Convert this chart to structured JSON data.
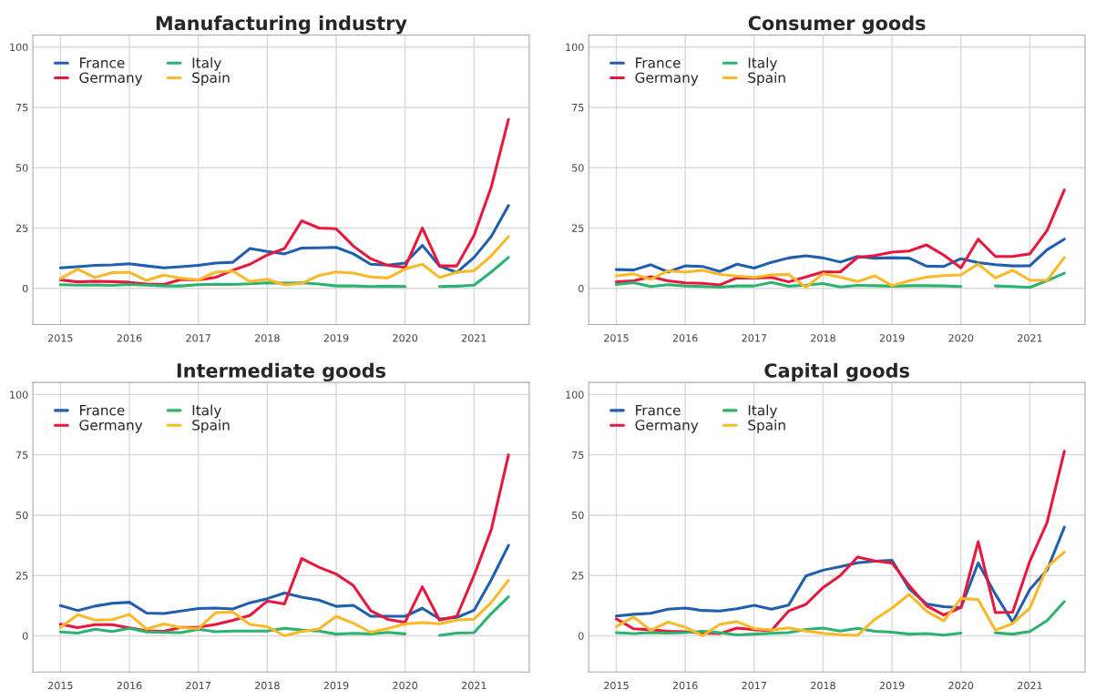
{
  "chart_data": [
    {
      "type": "line",
      "title": "Manufacturing industry",
      "x": [
        2015,
        2015.25,
        2015.5,
        2015.75,
        2016,
        2016.25,
        2016.5,
        2016.75,
        2017,
        2017.25,
        2017.5,
        2017.75,
        2018,
        2018.25,
        2018.5,
        2018.75,
        2019,
        2019.25,
        2019.5,
        2019.75,
        2020,
        2020.25,
        2020.5,
        2020.75,
        2021,
        2021.25,
        2021.5
      ],
      "xlim": [
        2014.6,
        2021.8
      ],
      "xticks": [
        2015,
        2016,
        2017,
        2018,
        2019,
        2020,
        2021
      ],
      "ylim": [
        -15,
        105
      ],
      "yticks": [
        0,
        25,
        50,
        75,
        100
      ],
      "grid": true,
      "legend": "top left",
      "series": [
        {
          "name": "France",
          "color": "#1f5fad",
          "values": [
            8.5,
            9,
            9.5,
            9.7,
            10.2,
            9.3,
            8.5,
            9,
            9.5,
            10.5,
            10.8,
            16.5,
            15.3,
            14.3,
            16.7,
            16.8,
            17,
            14.3,
            10,
            9.6,
            10.5,
            17.8,
            9.2,
            6.6,
            12.8,
            21.5,
            34.3
          ]
        },
        {
          "name": "Germany",
          "color": "#e8173d",
          "values": [
            3.5,
            2.7,
            2.9,
            2.8,
            2.5,
            1.8,
            1.6,
            3.7,
            3.5,
            4.5,
            7.5,
            10,
            13.8,
            16.5,
            28,
            25,
            24.7,
            17.5,
            12.3,
            9.5,
            8.7,
            25,
            9.3,
            9.3,
            22,
            42,
            70
          ]
        },
        {
          "name": "Italy",
          "color": "#2db36f",
          "values": [
            1.5,
            1.3,
            1.4,
            1.2,
            1.6,
            1.3,
            1,
            1,
            1.5,
            1.7,
            1.6,
            1.9,
            2.3,
            2.2,
            2.3,
            1.8,
            1,
            1,
            0.8,
            0.9,
            0.8,
            null,
            0.8,
            0.9,
            1.3,
            6.8,
            12.8
          ]
        },
        {
          "name": "Spain",
          "color": "#fbb829",
          "values": [
            4,
            8,
            4.5,
            6.5,
            6.7,
            3.3,
            5.5,
            4.2,
            3.5,
            6.7,
            7.2,
            2.8,
            3.8,
            1.4,
            2,
            5.3,
            6.8,
            6.3,
            4.7,
            4.3,
            8,
            10,
            4.5,
            6.7,
            7.3,
            13.5,
            21.5
          ]
        }
      ]
    },
    {
      "type": "line",
      "title": "Consumer goods",
      "x": [
        2015,
        2015.25,
        2015.5,
        2015.75,
        2016,
        2016.25,
        2016.5,
        2016.75,
        2017,
        2017.25,
        2017.5,
        2017.75,
        2018,
        2018.25,
        2018.5,
        2018.75,
        2019,
        2019.25,
        2019.5,
        2019.75,
        2020,
        2020.25,
        2020.5,
        2020.75,
        2021,
        2021.25,
        2021.5
      ],
      "xlim": [
        2014.6,
        2021.8
      ],
      "xticks": [
        2015,
        2016,
        2017,
        2018,
        2019,
        2020,
        2021
      ],
      "ylim": [
        -15,
        105
      ],
      "yticks": [
        0,
        25,
        50,
        75,
        100
      ],
      "grid": true,
      "legend": "top left",
      "series": [
        {
          "name": "France",
          "color": "#1f5fad",
          "values": [
            7.8,
            7.6,
            9.8,
            6.8,
            9.3,
            9.1,
            7,
            10,
            8.4,
            10.8,
            12.6,
            13.5,
            12.6,
            10.9,
            13.2,
            12.5,
            12.7,
            12.5,
            9.2,
            9.1,
            12.3,
            10.7,
            9.8,
            9.3,
            9.4,
            16,
            20.4
          ]
        },
        {
          "name": "Germany",
          "color": "#e8173d",
          "values": [
            2.7,
            3.1,
            4.8,
            3.1,
            2.3,
            2.1,
            1.4,
            4.4,
            4.3,
            4.5,
            2.7,
            4.7,
            6.8,
            6.8,
            12.8,
            13.6,
            15,
            15.5,
            18,
            13.8,
            8.5,
            20.4,
            13.2,
            13.2,
            14.3,
            24,
            40.8
          ]
        },
        {
          "name": "Italy",
          "color": "#2db36f",
          "values": [
            1.6,
            2.4,
            0.8,
            1.5,
            1,
            0.8,
            0.5,
            1,
            1,
            2.5,
            0.9,
            1.3,
            2,
            0.6,
            1.2,
            1.1,
            0.9,
            1.1,
            1.1,
            1,
            0.8,
            null,
            1,
            0.8,
            0.4,
            3.2,
            6.3
          ]
        },
        {
          "name": "Spain",
          "color": "#fbb829",
          "values": [
            5.2,
            6,
            3.7,
            7.3,
            6.7,
            7.5,
            5.8,
            5.1,
            4.5,
            5.6,
            5.8,
            0.5,
            6,
            4.6,
            2.8,
            5.2,
            1.1,
            3.1,
            4.6,
            5.3,
            5.6,
            10.1,
            4.3,
            7.5,
            3.4,
            3.3,
            12.8
          ]
        }
      ]
    },
    {
      "type": "line",
      "title": "Intermediate goods",
      "x": [
        2015,
        2015.25,
        2015.5,
        2015.75,
        2016,
        2016.25,
        2016.5,
        2016.75,
        2017,
        2017.25,
        2017.5,
        2017.75,
        2018,
        2018.25,
        2018.5,
        2018.75,
        2019,
        2019.25,
        2019.5,
        2019.75,
        2020,
        2020.25,
        2020.5,
        2020.75,
        2021,
        2021.25,
        2021.5
      ],
      "xlim": [
        2014.6,
        2021.8
      ],
      "xticks": [
        2015,
        2016,
        2017,
        2018,
        2019,
        2020,
        2021
      ],
      "ylim": [
        -15,
        105
      ],
      "yticks": [
        0,
        25,
        50,
        75,
        100
      ],
      "grid": true,
      "legend": "top left",
      "series": [
        {
          "name": "France",
          "color": "#1f5fad",
          "values": [
            12.5,
            10.5,
            12.3,
            13.5,
            13.9,
            9.4,
            9.2,
            10.3,
            11.3,
            11.5,
            11.1,
            13.7,
            15.4,
            17.7,
            16,
            14.8,
            12.2,
            12.6,
            8.1,
            8.1,
            8.1,
            11.4,
            7,
            7.6,
            10.6,
            23.2,
            37.5
          ]
        },
        {
          "name": "Germany",
          "color": "#e8173d",
          "values": [
            4.8,
            3.4,
            4.6,
            4.6,
            3.3,
            2.1,
            1.9,
            3.5,
            3.6,
            4.7,
            6.4,
            8.5,
            14.4,
            13.2,
            32,
            28.4,
            25.6,
            20.8,
            10.4,
            6.8,
            5.6,
            20.3,
            6.5,
            8.1,
            25,
            44,
            75
          ]
        },
        {
          "name": "Italy",
          "color": "#2db36f",
          "values": [
            1.6,
            1.1,
            2.7,
            1.8,
            3.1,
            1.6,
            1.4,
            1.3,
            2.7,
            1.7,
            2,
            2,
            2,
            3.1,
            2.4,
            2,
            0.7,
            1,
            0.8,
            1.4,
            0.8,
            null,
            0.2,
            1.1,
            1.3,
            9.2,
            16.2
          ]
        },
        {
          "name": "Spain",
          "color": "#fbb829",
          "values": [
            3.5,
            8.8,
            6.5,
            6.7,
            8.9,
            2.8,
            4.9,
            3.4,
            3,
            9.6,
            9.8,
            4.7,
            3.8,
            0,
            1.8,
            2.8,
            8,
            5.2,
            1.5,
            3,
            4.9,
            5.5,
            5,
            6.5,
            6.9,
            13.8,
            23
          ]
        }
      ]
    },
    {
      "type": "line",
      "title": "Capital goods",
      "x": [
        2015,
        2015.25,
        2015.5,
        2015.75,
        2016,
        2016.25,
        2016.5,
        2016.75,
        2017,
        2017.25,
        2017.5,
        2017.75,
        2018,
        2018.25,
        2018.5,
        2018.75,
        2019,
        2019.25,
        2019.5,
        2019.75,
        2020,
        2020.25,
        2020.5,
        2020.75,
        2021,
        2021.25,
        2021.5
      ],
      "xlim": [
        2014.6,
        2021.8
      ],
      "xticks": [
        2015,
        2016,
        2017,
        2018,
        2019,
        2020,
        2021
      ],
      "ylim": [
        -15,
        105
      ],
      "yticks": [
        0,
        25,
        50,
        75,
        100
      ],
      "grid": true,
      "legend": "top left",
      "series": [
        {
          "name": "France",
          "color": "#1f5fad",
          "values": [
            8.2,
            8.9,
            9.3,
            11,
            11.5,
            10.5,
            10.3,
            11.2,
            12.6,
            11,
            12.7,
            24.8,
            27.2,
            28.7,
            30.3,
            30.9,
            31.3,
            19.5,
            13.2,
            12.1,
            11.7,
            30.2,
            17.2,
            5.7,
            19.2,
            27.3,
            45
          ]
        },
        {
          "name": "Germany",
          "color": "#e8173d",
          "values": [
            7,
            2.9,
            2.5,
            1.9,
            1.7,
            1.1,
            0.9,
            3.2,
            2.5,
            2.2,
            10.3,
            13,
            20,
            25,
            32.6,
            31,
            30.2,
            20.8,
            12.5,
            8.6,
            11.7,
            39,
            9.6,
            9.8,
            31,
            47,
            76.5
          ]
        },
        {
          "name": "Italy",
          "color": "#2db36f",
          "values": [
            1.3,
            0.9,
            1.3,
            1.1,
            1.3,
            1.9,
            1.3,
            0.4,
            0.7,
            1,
            1.3,
            2.6,
            3.2,
            2,
            3.1,
            1.9,
            1.5,
            0.7,
            0.9,
            0.3,
            1.1,
            null,
            1.2,
            0.7,
            1.8,
            6.3,
            14.2
          ]
        },
        {
          "name": "Spain",
          "color": "#fbb829",
          "values": [
            3.8,
            7.8,
            2.3,
            5.7,
            3.6,
            0,
            4.7,
            5.9,
            3,
            2.4,
            3.3,
            2,
            1,
            0.5,
            0.2,
            6.8,
            11.5,
            17.2,
            10.2,
            6.2,
            15.5,
            15,
            2.3,
            5.1,
            11.5,
            28.5,
            34.7
          ]
        }
      ]
    }
  ]
}
